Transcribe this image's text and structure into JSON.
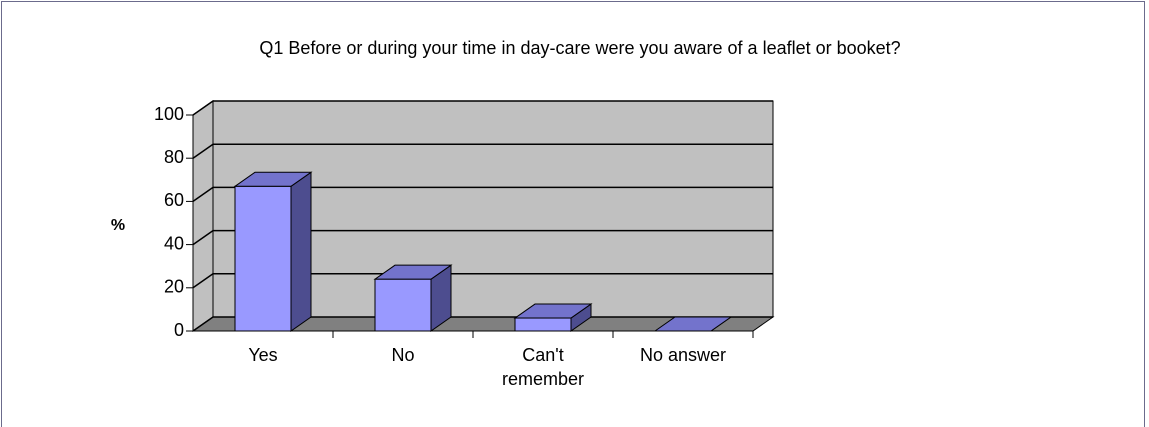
{
  "chart_data": {
    "type": "bar3d",
    "title": "Q1 Before or during your time in day-care were you aware of a leaflet or booket?",
    "y_label": "%",
    "categories": [
      "Yes",
      "No",
      "Can't remember",
      "No answer"
    ],
    "values": [
      67,
      24,
      6,
      0
    ],
    "color": "#9999ff",
    "ylim": [
      0,
      100
    ],
    "yticks": [
      0,
      20,
      40,
      60,
      80,
      100
    ],
    "grid": true
  }
}
